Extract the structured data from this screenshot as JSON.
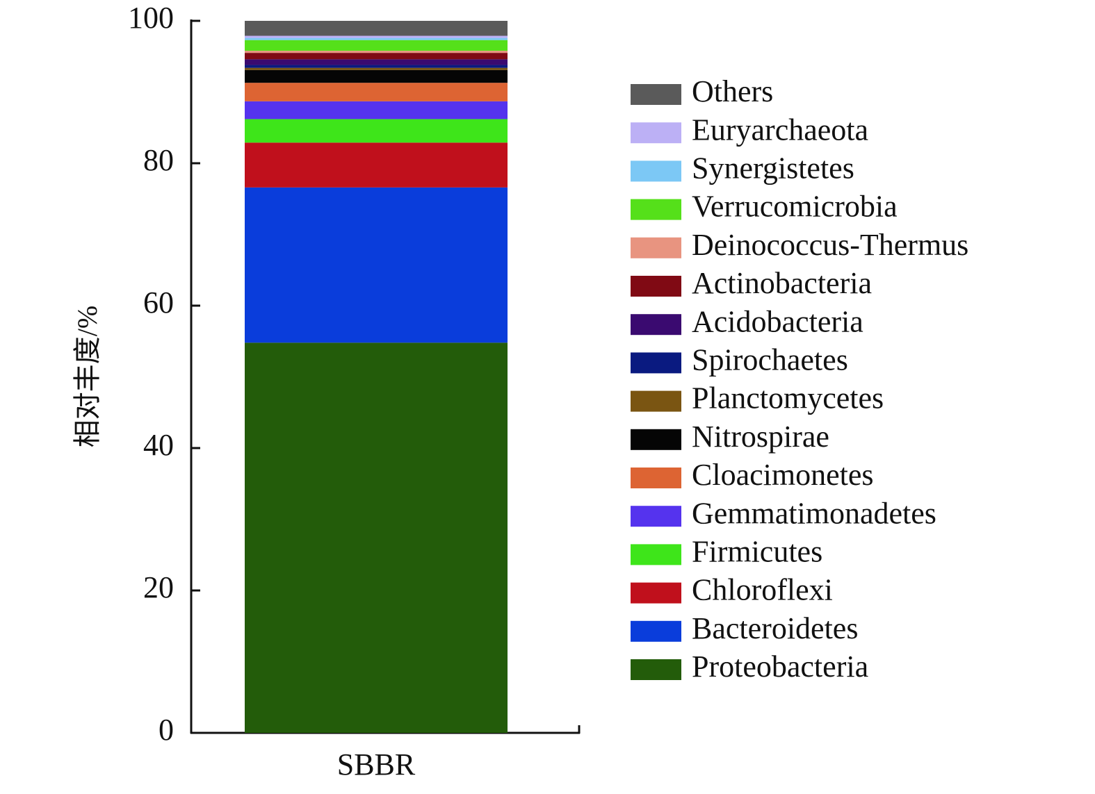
{
  "chart_data": {
    "type": "stacked_bar",
    "ylabel": "相对丰度/%",
    "categories": [
      "SBBR"
    ],
    "ylim": [
      0,
      100
    ],
    "yticks": [
      0,
      20,
      40,
      60,
      80,
      100
    ],
    "series": [
      {
        "name": "Proteobacteria",
        "color": "#235c0a",
        "values": [
          54.8
        ]
      },
      {
        "name": "Bacteroidetes",
        "color": "#0a3ddb",
        "values": [
          21.8
        ]
      },
      {
        "name": "Chloroflexi",
        "color": "#c0101c",
        "values": [
          6.3
        ]
      },
      {
        "name": "Firmicutes",
        "color": "#3ee51a",
        "values": [
          3.3
        ]
      },
      {
        "name": "Gemmatimonadetes",
        "color": "#5533ee",
        "values": [
          2.5
        ]
      },
      {
        "name": "Cloacimonetes",
        "color": "#dd6433",
        "values": [
          2.6
        ]
      },
      {
        "name": "Nitrospirae",
        "color": "#050505",
        "values": [
          1.8
        ]
      },
      {
        "name": "Planctomycetes",
        "color": "#7a5512",
        "values": [
          0.3
        ]
      },
      {
        "name": "Spirochaetes",
        "color": "#0a1a80",
        "values": [
          0.4
        ]
      },
      {
        "name": "Acidobacteria",
        "color": "#3a0a70",
        "values": [
          0.8
        ]
      },
      {
        "name": "Actinobacteria",
        "color": "#800a14",
        "values": [
          0.9
        ]
      },
      {
        "name": "Deinococcus-Thermus",
        "color": "#e89480",
        "values": [
          0.3
        ]
      },
      {
        "name": "Verrucomicrobia",
        "color": "#55e01a",
        "values": [
          1.5
        ]
      },
      {
        "name": "Synergistetes",
        "color": "#7cc8f5",
        "values": [
          0.3
        ]
      },
      {
        "name": "Euryarchaeota",
        "color": "#bcb0f5",
        "values": [
          0.3
        ]
      },
      {
        "name": "Others",
        "color": "#5a5a5a",
        "values": [
          2.1
        ]
      }
    ]
  }
}
